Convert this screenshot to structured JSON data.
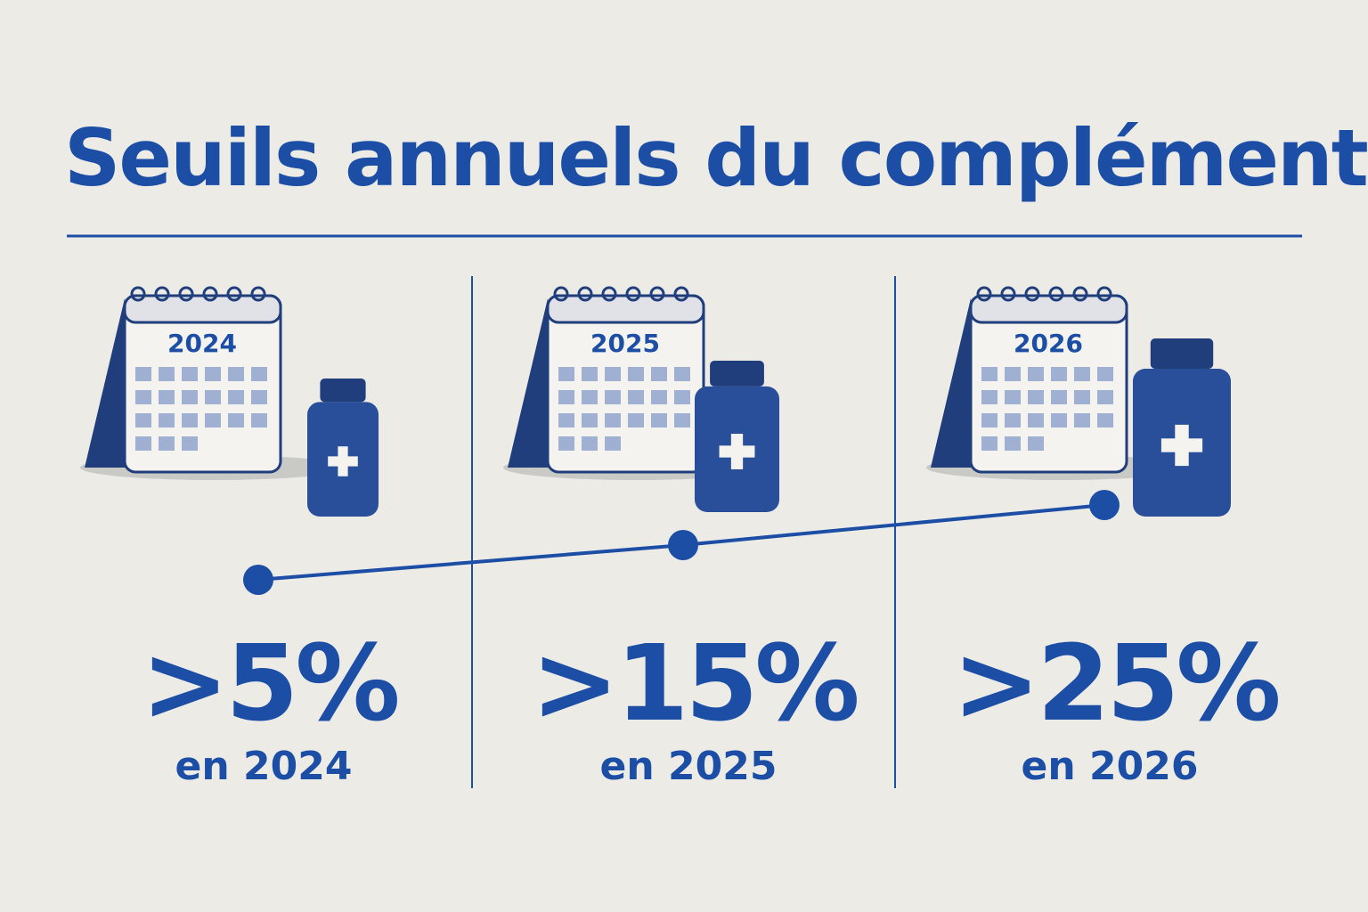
{
  "header": {
    "title": "Seuils annuels du complément"
  },
  "panels": [
    {
      "year": "2024",
      "value": ">5%",
      "caption": "en 2024"
    },
    {
      "year": "2025",
      "value": ">15%",
      "caption": "en 2025"
    },
    {
      "year": "2026",
      "value": ">25%",
      "caption": "en 2026"
    }
  ]
}
